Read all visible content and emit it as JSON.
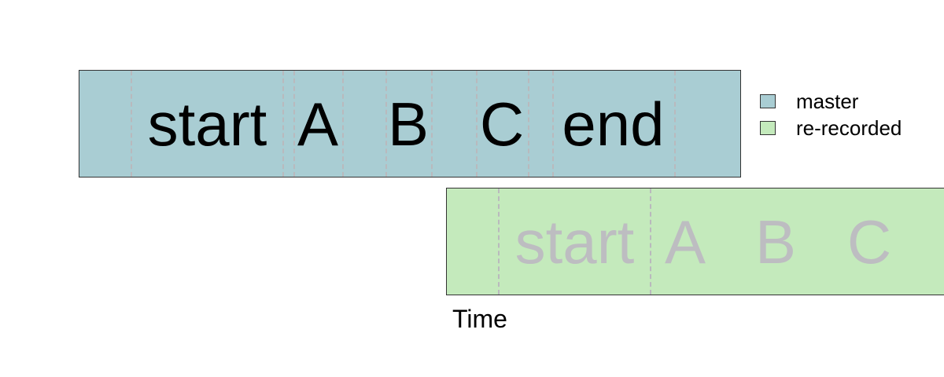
{
  "colors": {
    "master": "#a9cdd3",
    "rerecorded": "#c4eabc",
    "master_text": "#000000",
    "rerecorded_text": "#bdbdc1",
    "divider": "#b9b9bd",
    "border": "#333333"
  },
  "tracks": {
    "master": {
      "segments": [
        "start",
        "A",
        "B",
        "C",
        "end"
      ]
    },
    "rerecorded": {
      "segments": [
        "start",
        "A",
        "B",
        "C"
      ]
    }
  },
  "legend": {
    "items": [
      {
        "label": "master",
        "color": "#a9cdd3"
      },
      {
        "label": "re-recorded",
        "color": "#c4eabc"
      }
    ]
  },
  "axis": {
    "label": "Time"
  }
}
